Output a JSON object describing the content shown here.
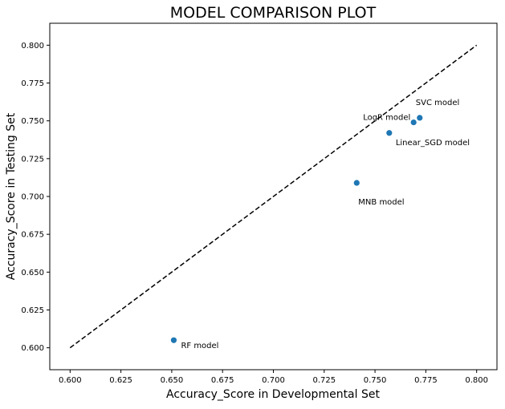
{
  "chart_data": {
    "type": "scatter",
    "title": "MODEL COMPARISON PLOT",
    "xlabel": "Accuracy_Score in Developmental Set",
    "ylabel": "Accuracy_Score in Testing Set",
    "xlim": [
      0.59,
      0.81
    ],
    "ylim": [
      0.5855,
      0.8145
    ],
    "x_ticks": [
      "0.600",
      "0.625",
      "0.650",
      "0.675",
      "0.700",
      "0.725",
      "0.750",
      "0.775",
      "0.800"
    ],
    "y_ticks": [
      "0.600",
      "0.625",
      "0.650",
      "0.675",
      "0.700",
      "0.725",
      "0.750",
      "0.775",
      "0.800"
    ],
    "grid": false,
    "marker_color": "#1f77b4",
    "reference_line": {
      "from": [
        0.6,
        0.6
      ],
      "to": [
        0.8,
        0.8
      ],
      "style": "dashed",
      "color": "#000000"
    },
    "points": [
      {
        "label": "SVC model",
        "x": 0.772,
        "y": 0.752
      },
      {
        "label": "LogR model",
        "x": 0.769,
        "y": 0.749
      },
      {
        "label": "Linear_SGD model",
        "x": 0.757,
        "y": 0.742
      },
      {
        "label": "MNB model",
        "x": 0.741,
        "y": 0.709
      },
      {
        "label": "RF model",
        "x": 0.651,
        "y": 0.605
      }
    ]
  }
}
